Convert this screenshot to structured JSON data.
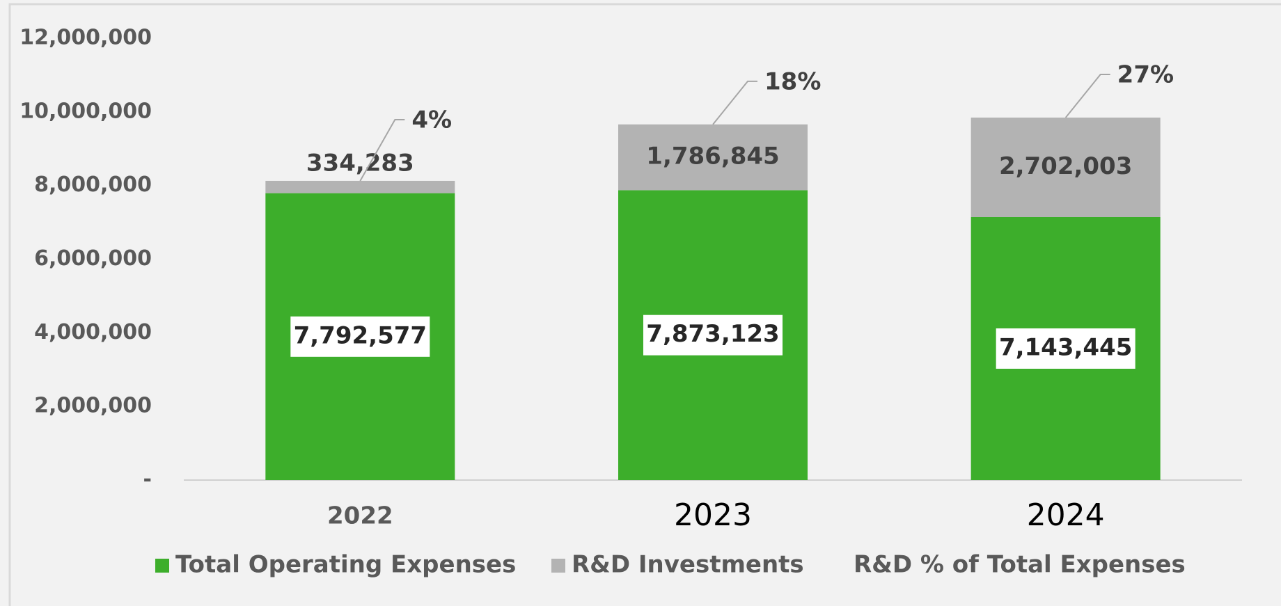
{
  "chart_data": {
    "type": "bar",
    "stacked": true,
    "categories": [
      "2022",
      "2023",
      "2024"
    ],
    "series": [
      {
        "name": "Total Operating Expenses",
        "color": "#3dae2b",
        "values": [
          7792577,
          7873123,
          7143445
        ],
        "value_labels": [
          "7,792,577",
          "7,873,123",
          "7,143,445"
        ]
      },
      {
        "name": "R&D Investments",
        "color": "#b3b3b3",
        "values": [
          334283,
          1786845,
          2702003
        ],
        "value_labels": [
          "334,283",
          "1,786,845",
          "2,702,003"
        ]
      },
      {
        "name": "R&D % of Total Expenses",
        "values": [
          4,
          18,
          27
        ],
        "value_labels": [
          "4%",
          "18%",
          "27%"
        ]
      }
    ],
    "ylim": [
      0,
      12000000
    ],
    "yticks": [
      {
        "value": 0,
        "label": "-"
      },
      {
        "value": 2000000,
        "label": "2,000,000"
      },
      {
        "value": 4000000,
        "label": "4,000,000"
      },
      {
        "value": 6000000,
        "label": "6,000,000"
      },
      {
        "value": 8000000,
        "label": "8,000,000"
      },
      {
        "value": 10000000,
        "label": "10,000,000"
      },
      {
        "value": 12000000,
        "label": "12,000,000"
      }
    ],
    "legend": "bottom"
  }
}
